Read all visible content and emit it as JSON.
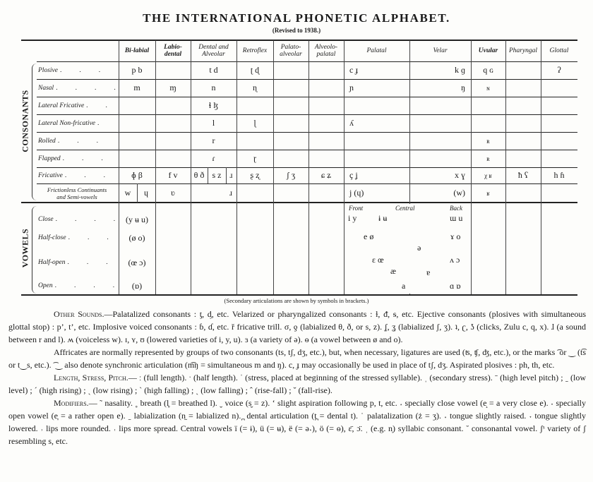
{
  "title": "THE INTERNATIONAL PHONETIC ALPHABET.",
  "subtitle": "(Revised to 1938.)",
  "sections": {
    "consonants": "CONSONANTS",
    "vowels": "VOWELS"
  },
  "columns": [
    "Bi-labial",
    "Labio-\ndental",
    "Dental and\nAlveolar",
    "Retroflex",
    "Palato-\nalveolar",
    "Alveolo-\npalatal",
    "Palatal",
    "Velar",
    "Uvular",
    "Pharyngal",
    "Glottal"
  ],
  "consonant_rows": [
    {
      "label": "Plosive",
      "cells": [
        "p b",
        "",
        "t d",
        "ʈ ɖ",
        "",
        "",
        "c ɟ",
        "k ɡ",
        "q ɢ",
        "",
        "ʔ"
      ]
    },
    {
      "label": "Nasal",
      "cells": [
        "m",
        "ɱ",
        "n",
        "ɳ",
        "",
        "",
        "ɲ",
        "ŋ",
        "ɴ",
        "",
        ""
      ]
    },
    {
      "label": "Lateral Fricative",
      "cells": [
        "",
        "",
        "ɬ ɮ",
        "",
        "",
        "",
        "",
        "",
        "",
        "",
        ""
      ]
    },
    {
      "label": "Lateral Non-fricative",
      "cells": [
        "",
        "",
        "l",
        "ɭ",
        "",
        "",
        "ʎ",
        "",
        "",
        "",
        ""
      ]
    },
    {
      "label": "Rolled",
      "cells": [
        "",
        "",
        "r",
        "",
        "",
        "",
        "",
        "",
        "ʀ",
        "",
        ""
      ]
    },
    {
      "label": "Flapped",
      "cells": [
        "",
        "",
        "ɾ",
        "ɽ",
        "",
        "",
        "",
        "",
        "ʀ",
        "",
        ""
      ]
    },
    {
      "label": "Fricative",
      "cells": [
        "ɸ β",
        "f v",
        [
          "θ ð",
          "s z",
          "ɹ"
        ],
        "ʂ ʐ",
        "ʃ ʒ",
        "ɕ ʑ",
        "ç ʝ",
        "x ɣ",
        "χ ʁ",
        "ħ ʕ",
        "h ɦ"
      ]
    },
    {
      "label": "Frictionless Continuants\nand Semi-vowels",
      "cells": [
        [
          "w",
          "ɥ"
        ],
        "ʋ",
        "ɹ",
        "",
        "",
        "",
        "j (ɥ)",
        "(w)",
        "ʁ",
        "",
        ""
      ]
    }
  ],
  "vowel_rows": [
    {
      "label": "Close",
      "rounded": "(y ʉ u)"
    },
    {
      "label": "Half-close",
      "rounded": "(ø o)"
    },
    {
      "label": "Half-open",
      "rounded": "(œ ɔ)"
    },
    {
      "label": "Open",
      "rounded": "(ɒ)"
    }
  ],
  "vowel_chart": {
    "headings": [
      "Front",
      "Central",
      "Back"
    ],
    "symbols": [
      "i y",
      "ɨ ʉ",
      "ɯ u",
      "e ø",
      "ɤ o",
      "ə",
      "ɛ œ",
      "ʌ ɔ",
      "æ",
      "ɐ",
      "a",
      "ɑ ɒ"
    ]
  },
  "note": "(Secondary articulations are shown by symbols in brackets.)",
  "paragraphs": [
    {
      "lead": "Other Sounds.",
      "text": "—Palatalized consonants : ƫ, ᶁ, etc.   Velarized or pharyngalized consonants : ɫ, ᵭ, ᵴ, etc.  Ejective consonants (plosives with simultaneous glottal stop) : p’, t’, etc.  Implosive voiced consonants : ɓ, ɗ, etc.  ř fricative trill.  σ, ƍ (labialized θ, ð, or s, z).  ʆ, ʓ (labialized ʃ, ʒ).  ʇ, ʗ, ʖ (clicks, Zulu c, q, x).  ɺ (a sound between r and l).  ʍ (voiceless w).  ɪ, ʏ, ʊ (lowered varieties of i, y, u).  ɜ (a variety of ə).  ɵ (a vowel between ø and o)."
    },
    {
      "lead": "",
      "text": "Affricates are normally represented by groups of two consonants (ts, tʃ, dʒ, etc.), but, when necessary, ligatures are used (ʦ, ʧ, ʤ, etc.), or the marks ͡ or ‿ (t͡s or t‿s, etc.).  ͡ ‿ also denote synchronic articulation (m͡ŋ = simultaneous m and ŋ).  c, ɟ may occasionally be used in place of tʃ, dʒ.  Aspirated plosives : ph, th, etc."
    },
    {
      "lead": "Length, Stress, Pitch.",
      "text": "— ː (full length).  ˑ (half length).  ˈ (stress, placed at beginning of the stressed syllable).  ˌ (secondary stress).  ˉ (high level pitch) ;  ˍ (low level) ;  ˊ (high rising) ;  ˏ (low rising) ;  ˋ (high falling) ;  ˎ (low falling) ;  ˆ (rise-fall) ;  ˇ (fall-rise)."
    },
    {
      "lead": "Modifiers.",
      "text": "— ˜ nasality.  ˳ breath (l̥ = breathed l).  ˬ voice (s̬ = z).  ʻ slight aspiration following p, t, etc.  ˔ specially close vowel (e̝ = a very close e).  ˕ specially open vowel (e̞ = a rather open e).  ˍ labialization (n̫ = labialized n).  ̪ dental articulation (t̪ = dental t).  ˙ palatalization (ż = ʒ).  ˔ tongue slightly raised.  ˕ tongue slightly lowered.  ˒ lips more rounded.  ˓ lips more spread.  Central vowels ï (= ɨ), ü (= ʉ), ë (= ə˔), ö (= ɵ), ɛ̈, ɔ̈.  ˌ (e.g. n̩) syllabic consonant.  ˘ consonantal vowel.  ʃˢ variety of ʃ resembling s, etc."
    }
  ]
}
